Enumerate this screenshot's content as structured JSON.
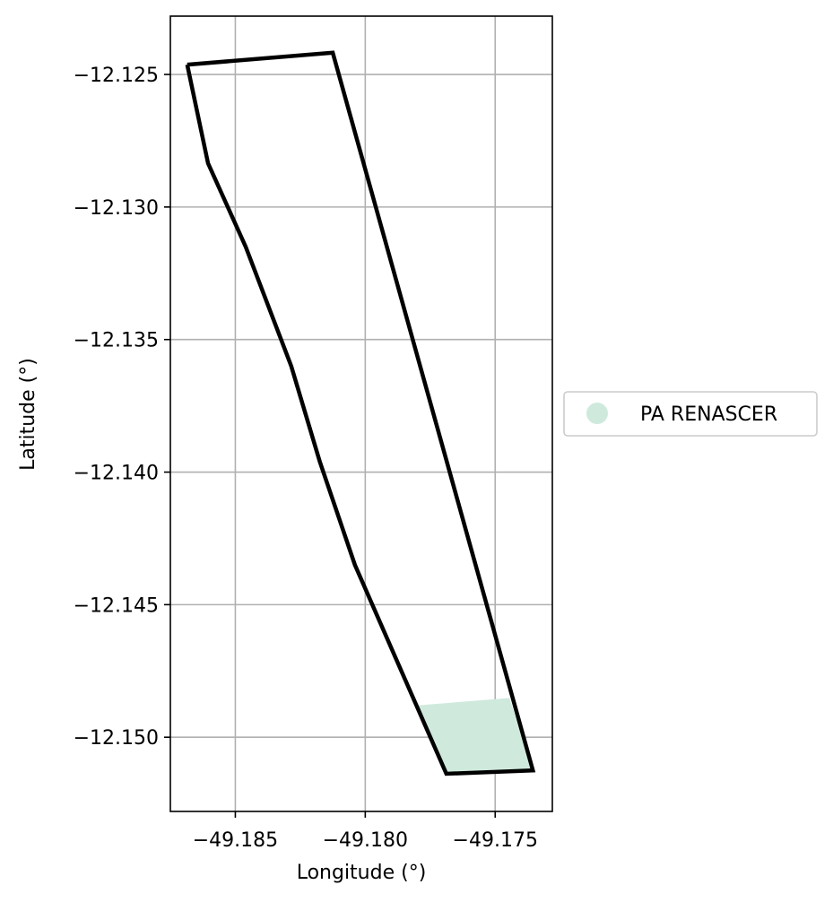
{
  "chart_data": {
    "type": "map",
    "xlabel": "Longitude (°)",
    "ylabel": "Latitude (°)",
    "xlim": [
      -49.1875,
      -49.1728
    ],
    "ylim": [
      -12.1528,
      -12.1228
    ],
    "grid": true,
    "x_ticks": [
      -49.185,
      -49.18,
      -49.175
    ],
    "x_tick_labels": [
      "−49.185",
      "−49.180",
      "−49.175"
    ],
    "y_ticks": [
      -12.125,
      -12.13,
      -12.135,
      -12.14,
      -12.145,
      -12.15
    ],
    "y_tick_labels": [
      "−12.125",
      "−12.130",
      "−12.135",
      "−12.140",
      "−12.145",
      "−12.150"
    ],
    "boundary": {
      "color": "#000000",
      "coordinates": [
        [
          -49.18685,
          -12.12463
        ],
        [
          -49.18125,
          -12.12418
        ],
        [
          -49.17355,
          -12.15125
        ],
        [
          -49.17688,
          -12.15138
        ],
        [
          -49.1804,
          -12.1435
        ],
        [
          -49.18175,
          -12.1396
        ],
        [
          -49.18285,
          -12.136
        ],
        [
          -49.1846,
          -12.1315
        ],
        [
          -49.18605,
          -12.12835
        ],
        [
          -49.18685,
          -12.12463
        ]
      ]
    },
    "filled_areas": [
      {
        "name": "PA RENASCER",
        "color": "#cfeadd",
        "coordinates": [
          [
            -49.178,
            -12.1488
          ],
          [
            -49.17445,
            -12.14852
          ],
          [
            -49.17355,
            -12.15125
          ],
          [
            -49.17688,
            -12.15138
          ],
          [
            -49.178,
            -12.1488
          ]
        ]
      }
    ],
    "legend": {
      "placement": "center-right-outside",
      "entries": [
        {
          "label": "PA RENASCER",
          "color": "#cfeadd",
          "marker": "circle"
        }
      ]
    }
  }
}
